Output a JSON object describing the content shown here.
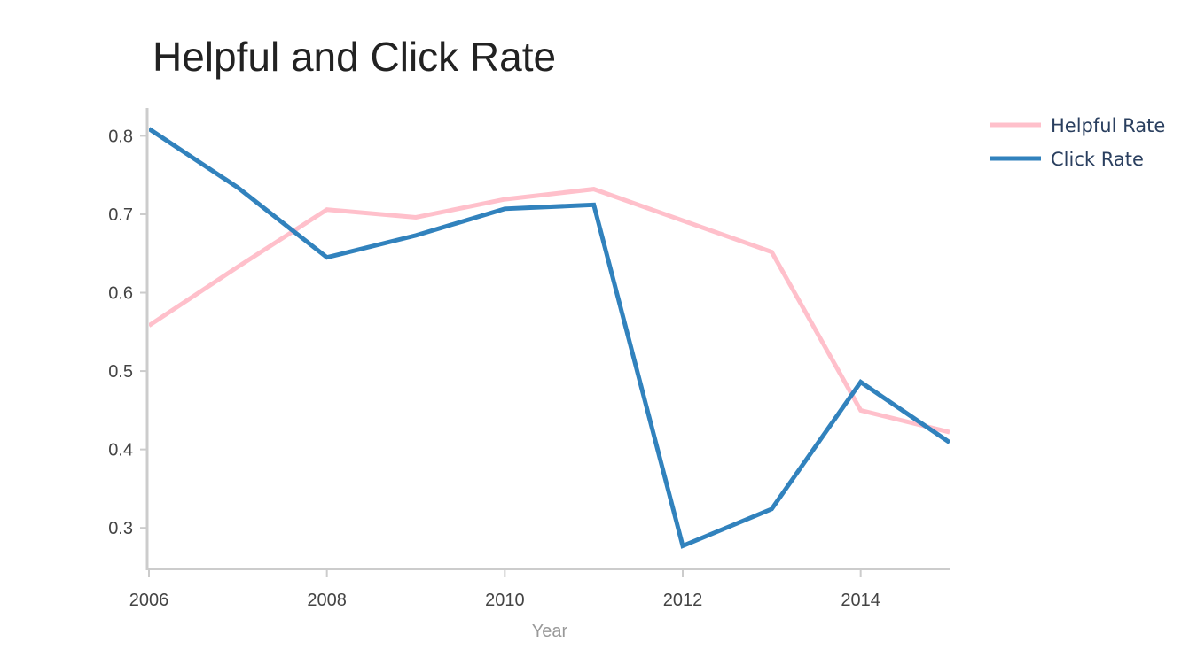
{
  "chart_data": {
    "type": "line",
    "title": "Helpful and Click Rate",
    "xlabel": "Year",
    "ylabel": "",
    "x": [
      2006,
      2007,
      2008,
      2009,
      2010,
      2011,
      2012,
      2013,
      2014,
      2015
    ],
    "xlim": [
      2006,
      2015
    ],
    "ylim": [
      0.246,
      0.84
    ],
    "x_ticks": [
      2006,
      2008,
      2010,
      2012,
      2014
    ],
    "x_tick_labels": [
      "2006",
      "2008",
      "2010",
      "2012",
      "2014"
    ],
    "y_ticks": [
      0.3,
      0.4,
      0.5,
      0.6,
      0.7,
      0.8
    ],
    "y_tick_labels": [
      "0.3",
      "0.4",
      "0.5",
      "0.6",
      "0.7",
      "0.8"
    ],
    "grid": false,
    "legend_position": "top-right",
    "series": [
      {
        "name": "Helpful Rate",
        "color": "#ffc0cb",
        "values": [
          0.558,
          0.633,
          0.706,
          0.696,
          0.719,
          0.732,
          0.692,
          0.652,
          0.45,
          0.422
        ]
      },
      {
        "name": "Click Rate",
        "color": "#3182bd",
        "values": [
          0.809,
          0.734,
          0.645,
          0.673,
          0.707,
          0.712,
          0.277,
          0.324,
          0.486,
          0.409
        ]
      }
    ]
  }
}
